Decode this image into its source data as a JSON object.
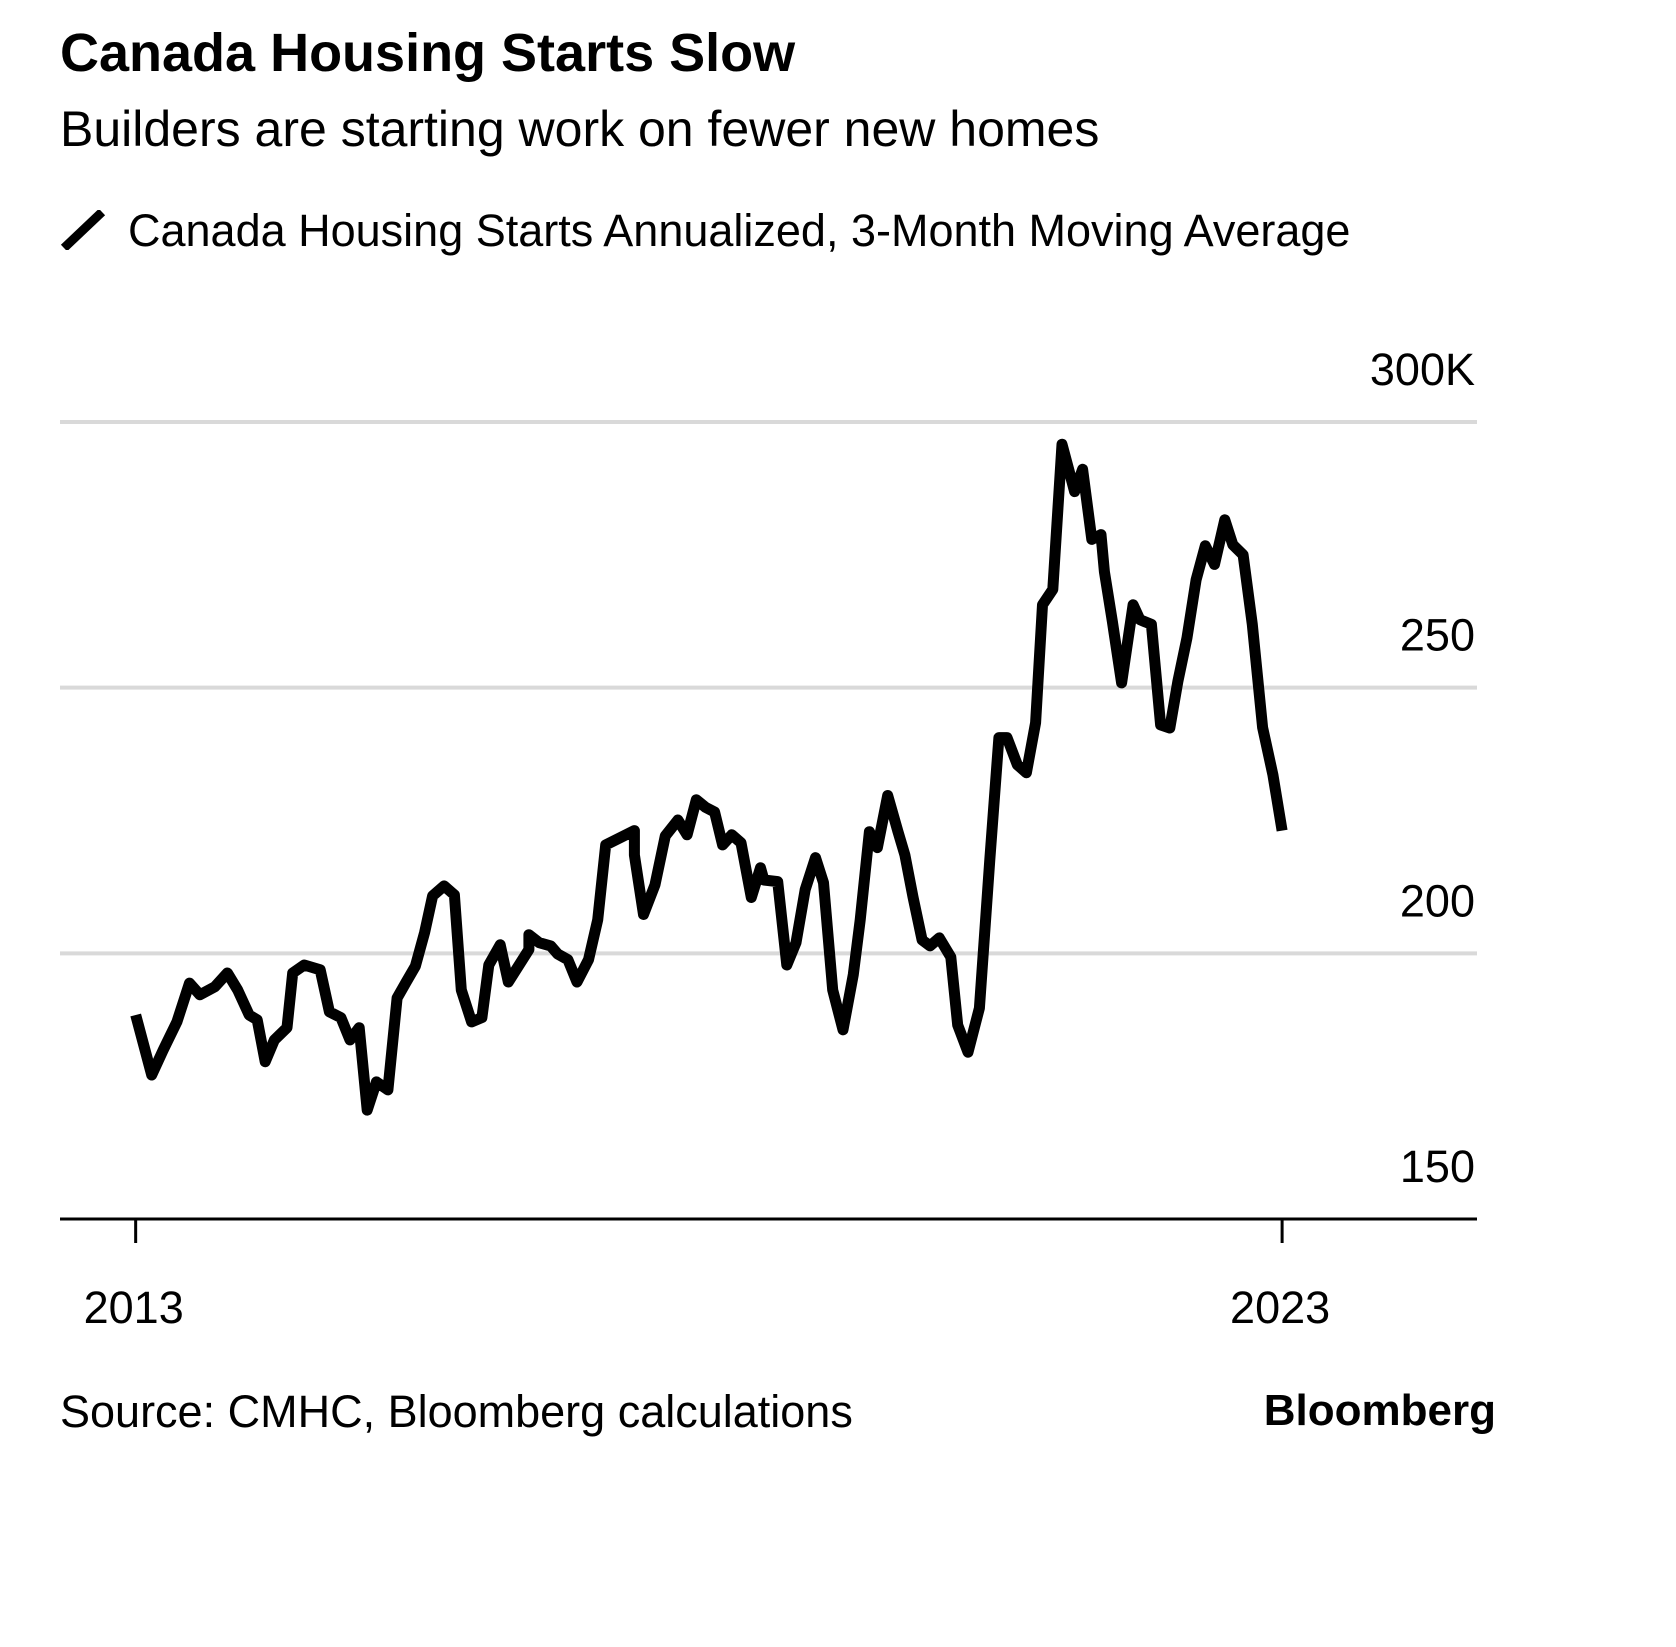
{
  "chart_data": {
    "type": "line",
    "title": "Canada Housing Starts Slow",
    "subtitle": "Builders are starting work on fewer new homes",
    "source": "Source: CMHC, Bloomberg calculations",
    "brand": "Bloomberg",
    "xlim": [
      2012.34,
      2024.7
    ],
    "xticks": [
      2013,
      2023
    ],
    "ylim": [
      150,
      300
    ],
    "yticks": [
      150,
      200,
      250,
      {
        "value": 300,
        "label": "300K"
      }
    ],
    "grid": true,
    "series": [
      {
        "name": "Canada Housing Starts Annualized, 3-Month Moving Average",
        "color": "#000000",
        "x": [
          2013.0,
          2013.14,
          2013.24,
          2013.36,
          2013.47,
          2013.56,
          2013.69,
          2013.8,
          2013.89,
          2013.99,
          2014.06,
          2014.13,
          2014.21,
          2014.32,
          2014.37,
          2014.47,
          2014.61,
          2014.69,
          2014.79,
          2014.87,
          2014.95,
          2015.02,
          2015.1,
          2015.2,
          2015.28,
          2015.36,
          2015.44,
          2015.52,
          2015.59,
          2015.69,
          2015.78,
          2015.84,
          2015.93,
          2016.02,
          2016.08,
          2016.18,
          2016.25,
          2016.43,
          2016.43,
          2016.52,
          2016.62,
          2016.68,
          2016.77,
          2016.85,
          2016.95,
          2017.03,
          2017.1,
          2017.35,
          2017.35,
          2017.43,
          2017.53,
          2017.62,
          2017.73,
          2017.81,
          2017.89,
          2017.97,
          2018.05,
          2018.12,
          2018.2,
          2018.28,
          2018.37,
          2018.45,
          2018.48,
          2018.6,
          2018.68,
          2018.76,
          2018.84,
          2018.93,
          2019.0,
          2019.08,
          2019.17,
          2019.26,
          2019.32,
          2019.4,
          2019.47,
          2019.56,
          2019.65,
          2019.71,
          2019.78,
          2019.86,
          2019.93,
          2020.01,
          2020.11,
          2020.17,
          2020.26,
          2020.36,
          2020.45,
          2020.53,
          2020.6,
          2020.69,
          2020.77,
          2020.85,
          2020.91,
          2021.0,
          2021.08,
          2021.19,
          2021.26,
          2021.34,
          2021.42,
          2021.45,
          2021.52,
          2021.6,
          2021.7,
          2021.76,
          2021.86,
          2021.94,
          2022.02,
          2022.09,
          2022.17,
          2022.25,
          2022.33,
          2022.41,
          2022.5,
          2022.57,
          2022.66,
          2022.74,
          2022.83,
          2022.92,
          2023.0
        ],
        "values": [
          188.4,
          177.1,
          181.8,
          187.1,
          194.4,
          192.2,
          193.7,
          196.3,
          193.1,
          188.4,
          187.5,
          179.6,
          183.7,
          186.0,
          196.3,
          197.8,
          196.9,
          189.0,
          187.9,
          183.7,
          186.0,
          170.5,
          175.8,
          174.3,
          191.6,
          194.6,
          197.6,
          203.9,
          210.8,
          212.7,
          211.0,
          193.1,
          187.1,
          187.9,
          197.8,
          201.6,
          194.6,
          200.7,
          203.5,
          202.0,
          201.4,
          199.9,
          198.8,
          194.6,
          198.8,
          206.3,
          220.4,
          223.1,
          218.5,
          207.3,
          212.9,
          222.1,
          225.1,
          222.3,
          228.9,
          227.5,
          226.6,
          220.4,
          222.3,
          220.8,
          210.5,
          216.1,
          213.8,
          213.5,
          197.8,
          202.0,
          212.0,
          218.0,
          213.3,
          193.1,
          185.6,
          196.0,
          206.3,
          222.9,
          219.9,
          229.7,
          222.9,
          218.5,
          210.6,
          202.5,
          201.4,
          202.9,
          199.3,
          186.5,
          181.4,
          189.7,
          217.6,
          240.6,
          240.6,
          235.5,
          234.0,
          243.4,
          265.6,
          268.5,
          295.8,
          286.9,
          291.1,
          277.9,
          278.8,
          271.8,
          262.4,
          250.9,
          265.6,
          262.8,
          261.9,
          243.0,
          242.4,
          251.1,
          259.4,
          270.3,
          276.7,
          273.2,
          281.6,
          276.9,
          275.0,
          261.9,
          242.5,
          233.6,
          223.1
        ]
      }
    ]
  }
}
